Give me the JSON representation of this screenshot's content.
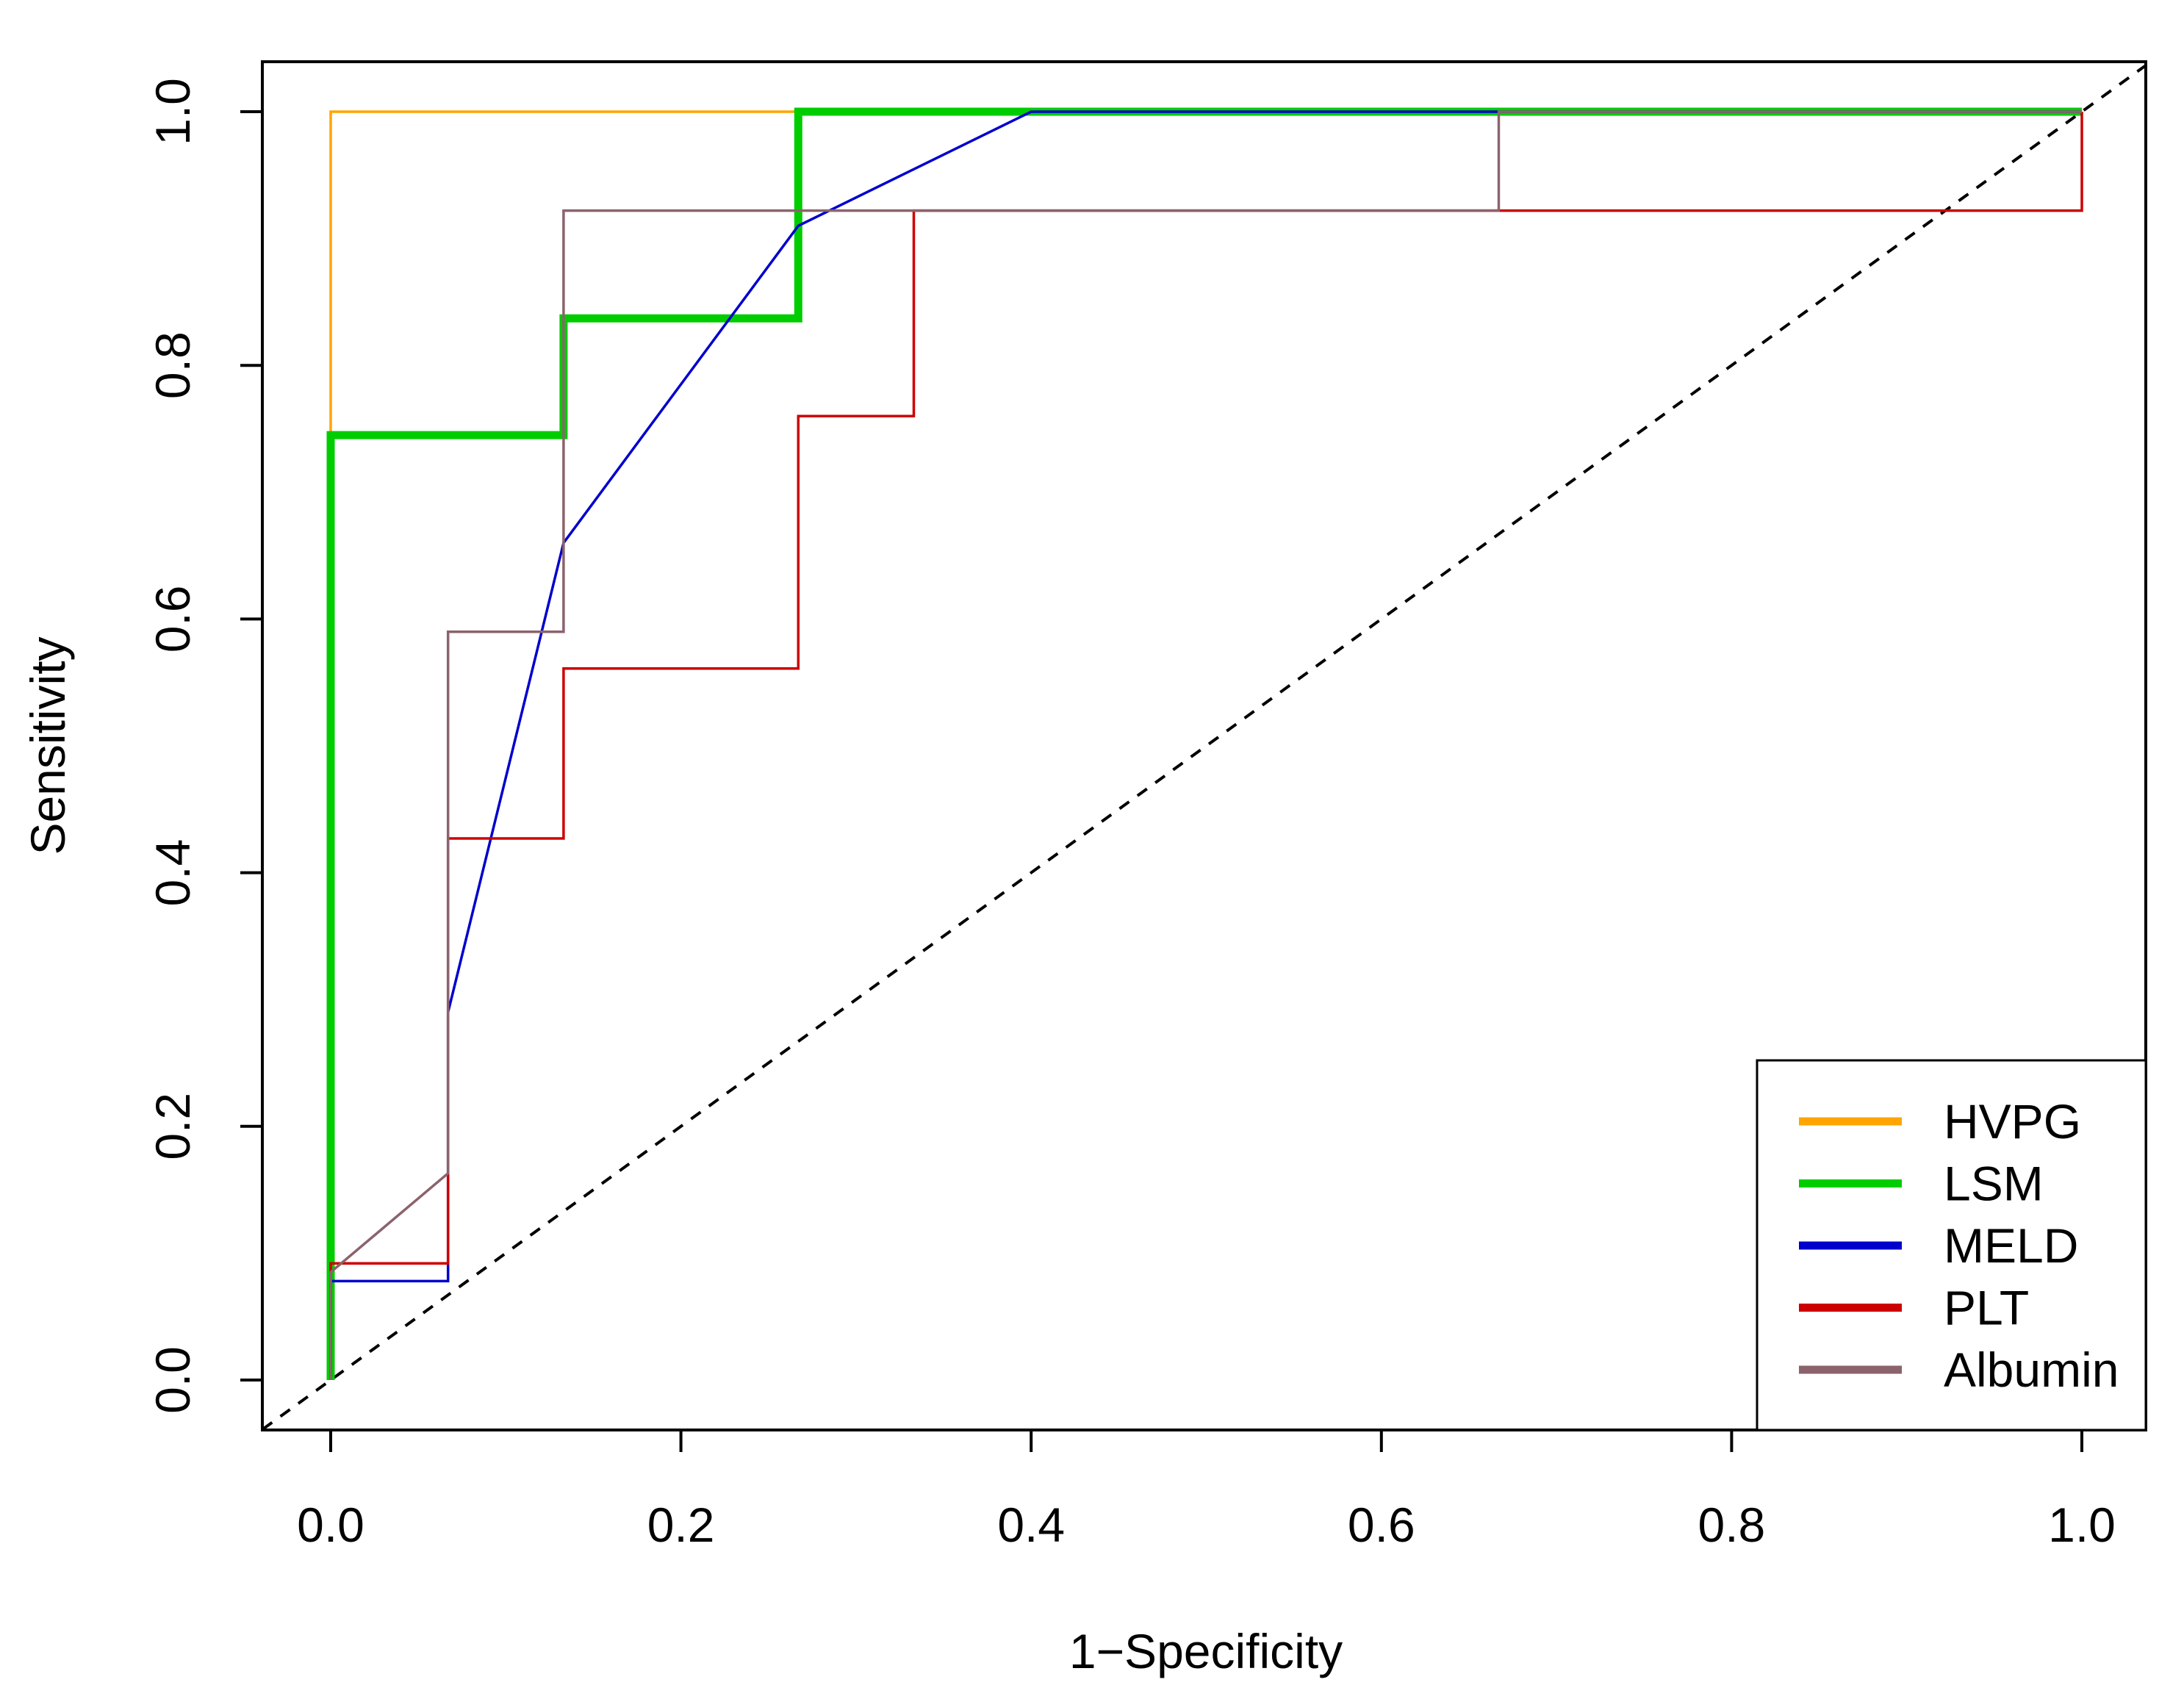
{
  "chart_data": {
    "type": "line",
    "xlabel": "1−Specificity",
    "ylabel": "Sensitivity",
    "xlim": [
      0.0,
      1.0
    ],
    "ylim": [
      0.0,
      1.0
    ],
    "x_ticks": [
      "0.0",
      "0.2",
      "0.4",
      "0.6",
      "0.8",
      "1.0"
    ],
    "y_ticks": [
      "0.0",
      "0.2",
      "0.4",
      "0.6",
      "0.8",
      "1.0"
    ],
    "grid": false,
    "legend_position": "bottom-right",
    "reference_line": {
      "x": [
        0,
        1
      ],
      "y": [
        0,
        1
      ],
      "style": "dashed",
      "color": "#000000"
    },
    "series": [
      {
        "name": "HVPG",
        "color": "#FFA500",
        "weight": "thin",
        "x": [
          0.0,
          0.0,
          1.0
        ],
        "y": [
          0.0,
          1.0,
          1.0
        ]
      },
      {
        "name": "LSM",
        "color": "#00CD00",
        "weight": "thick",
        "x": [
          0.0,
          0.0,
          0.133,
          0.133,
          0.267,
          0.267,
          1.0
        ],
        "y": [
          0.0,
          0.745,
          0.745,
          0.837,
          0.837,
          1.0,
          1.0
        ]
      },
      {
        "name": "MELD",
        "color": "#0000CD",
        "weight": "thin",
        "x": [
          0.0,
          0.0,
          0.067,
          0.067,
          0.133,
          0.267,
          0.4,
          1.0
        ],
        "y": [
          0.0,
          0.078,
          0.078,
          0.29,
          0.66,
          0.91,
          1.0,
          1.0
        ]
      },
      {
        "name": "PLT",
        "color": "#CD0000",
        "weight": "thin",
        "x": [
          0.0,
          0.0,
          0.067,
          0.067,
          0.133,
          0.133,
          0.267,
          0.267,
          0.333,
          0.333,
          1.0,
          1.0
        ],
        "y": [
          0.0,
          0.092,
          0.092,
          0.427,
          0.427,
          0.561,
          0.561,
          0.76,
          0.76,
          0.922,
          0.922,
          1.0
        ]
      },
      {
        "name": "Albumin",
        "color": "#8B636C",
        "weight": "thin",
        "x": [
          0.0,
          0.0,
          0.067,
          0.067,
          0.133,
          0.133,
          0.667,
          0.667,
          1.0
        ],
        "y": [
          0.0,
          0.085,
          0.163,
          0.59,
          0.59,
          0.922,
          0.922,
          1.0,
          1.0
        ]
      }
    ]
  }
}
